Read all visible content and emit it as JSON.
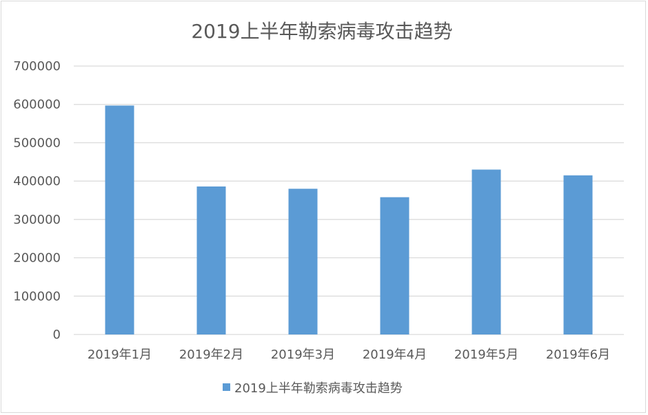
{
  "chart_data": {
    "type": "bar",
    "title": "2019上半年勒索病毒攻击趋势",
    "categories": [
      "2019年1月",
      "2019年2月",
      "2019年3月",
      "2019年4月",
      "2019年5月",
      "2019年6月"
    ],
    "series": [
      {
        "name": "2019上半年勒索病毒攻击趋势",
        "values": [
          597000,
          386000,
          380000,
          358000,
          430000,
          415000
        ],
        "color": "#5b9bd5"
      }
    ],
    "ylim": [
      0,
      700000
    ],
    "yticks": [
      "0",
      "100000",
      "200000",
      "300000",
      "400000",
      "500000",
      "600000",
      "700000"
    ],
    "ytick_values": [
      0,
      100000,
      200000,
      300000,
      400000,
      500000,
      600000,
      700000
    ],
    "xlabel": "",
    "ylabel": "",
    "grid": true,
    "legend_position": "bottom",
    "gridline_color": "#d9d9d9",
    "axis_color": "#d9d9d9"
  }
}
